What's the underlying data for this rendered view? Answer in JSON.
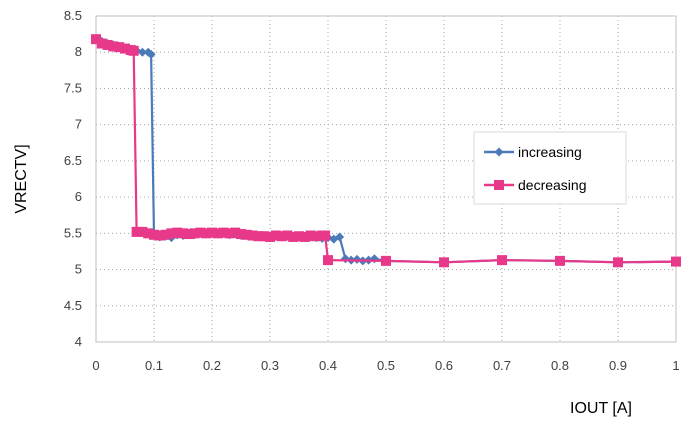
{
  "chart_data": {
    "type": "line",
    "title": "",
    "xlabel": "IOUT [A]",
    "ylabel": "VRECTV]",
    "xlim": [
      0,
      1
    ],
    "ylim": [
      4,
      8.5
    ],
    "x_ticks": [
      0,
      0.1,
      0.2,
      0.3,
      0.4,
      0.5,
      0.6,
      0.7,
      0.8,
      0.9,
      1
    ],
    "x_tick_labels": [
      "0",
      "0.1",
      "0.2",
      "0.3",
      "0.4",
      "0.5",
      "0.6",
      "0.7",
      "0.8",
      "0.9",
      "1"
    ],
    "y_ticks": [
      4,
      4.5,
      5,
      5.5,
      6,
      6.5,
      7,
      7.5,
      8,
      8.5
    ],
    "y_tick_labels": [
      "4",
      "4.5",
      "5",
      "5.5",
      "6",
      "6.5",
      "7",
      "7.5",
      "8",
      "8.5"
    ],
    "grid": "dotted",
    "legend_position": "right",
    "series": [
      {
        "name": "increasing",
        "color": "#4a7ab8",
        "marker": "diamond",
        "x": [
          0,
          0.01,
          0.02,
          0.03,
          0.04,
          0.05,
          0.06,
          0.07,
          0.08,
          0.09,
          0.095,
          0.1,
          0.11,
          0.12,
          0.13,
          0.14,
          0.15,
          0.16,
          0.17,
          0.18,
          0.19,
          0.2,
          0.21,
          0.22,
          0.23,
          0.24,
          0.25,
          0.26,
          0.27,
          0.28,
          0.29,
          0.3,
          0.31,
          0.32,
          0.33,
          0.34,
          0.35,
          0.36,
          0.37,
          0.38,
          0.39,
          0.4,
          0.41,
          0.42,
          0.43,
          0.44,
          0.45,
          0.46,
          0.47,
          0.48,
          0.5,
          0.6,
          0.7,
          0.8,
          0.9,
          1
        ],
        "values": [
          8.18,
          8.15,
          8.12,
          8.1,
          8.08,
          8.06,
          8.04,
          8.02,
          8.0,
          8.0,
          7.97,
          5.47,
          5.45,
          5.46,
          5.44,
          5.48,
          5.47,
          5.49,
          5.48,
          5.5,
          5.49,
          5.5,
          5.49,
          5.5,
          5.48,
          5.49,
          5.47,
          5.48,
          5.46,
          5.47,
          5.45,
          5.46,
          5.47,
          5.45,
          5.46,
          5.44,
          5.45,
          5.44,
          5.45,
          5.44,
          5.43,
          5.44,
          5.42,
          5.45,
          5.15,
          5.13,
          5.14,
          5.12,
          5.13,
          5.15,
          5.12,
          5.1,
          5.13,
          5.12,
          5.1,
          5.11
        ]
      },
      {
        "name": "decreasing",
        "color": "#e8388a",
        "marker": "square",
        "x": [
          0,
          0.01,
          0.02,
          0.03,
          0.04,
          0.05,
          0.06,
          0.065,
          0.07,
          0.08,
          0.09,
          0.1,
          0.11,
          0.12,
          0.13,
          0.14,
          0.15,
          0.16,
          0.17,
          0.18,
          0.19,
          0.2,
          0.21,
          0.22,
          0.23,
          0.24,
          0.25,
          0.26,
          0.27,
          0.28,
          0.29,
          0.3,
          0.31,
          0.32,
          0.33,
          0.34,
          0.35,
          0.36,
          0.37,
          0.38,
          0.39,
          0.395,
          0.4,
          0.5,
          0.6,
          0.7,
          0.8,
          0.9,
          1
        ],
        "values": [
          8.18,
          8.12,
          8.1,
          8.08,
          8.07,
          8.05,
          8.03,
          8.02,
          5.52,
          5.52,
          5.5,
          5.48,
          5.47,
          5.48,
          5.5,
          5.51,
          5.5,
          5.49,
          5.5,
          5.51,
          5.5,
          5.51,
          5.5,
          5.51,
          5.5,
          5.51,
          5.49,
          5.48,
          5.47,
          5.46,
          5.46,
          5.45,
          5.47,
          5.46,
          5.47,
          5.45,
          5.46,
          5.45,
          5.47,
          5.46,
          5.47,
          5.47,
          5.13,
          5.12,
          5.1,
          5.13,
          5.12,
          5.1,
          5.11
        ]
      }
    ]
  }
}
